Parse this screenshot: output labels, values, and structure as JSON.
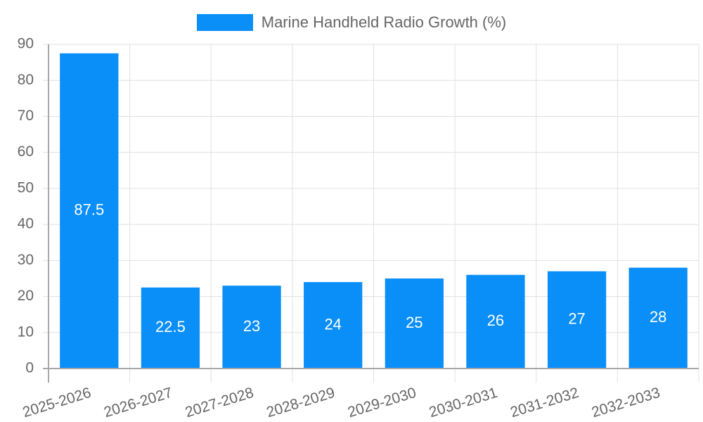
{
  "chart_data": {
    "type": "bar",
    "title": "",
    "legend": [
      {
        "label": "Marine Handheld Radio Growth (%)",
        "color": "#0a8ef8"
      }
    ],
    "legend_position": "top",
    "categories": [
      "2025-2026",
      "2026-2027",
      "2027-2028",
      "2028-2029",
      "2029-2030",
      "2030-2031",
      "2031-2032",
      "2032-2033"
    ],
    "series": [
      {
        "name": "Marine Handheld Radio Growth (%)",
        "values": [
          87.5,
          22.5,
          23,
          24,
          25,
          26,
          27,
          28
        ],
        "color": "#0a8ef8"
      }
    ],
    "data_labels": [
      "87.5",
      "22.5",
      "23",
      "24",
      "25",
      "26",
      "27",
      "28"
    ],
    "xlabel": "",
    "ylabel": "",
    "ylim": [
      0,
      90
    ],
    "yticks": [
      0,
      10,
      20,
      30,
      40,
      50,
      60,
      70,
      80,
      90
    ],
    "grid": true
  },
  "legend": {
    "label": "Marine Handheld Radio Growth (%)",
    "color": "#0a8ef8"
  },
  "colors": {
    "bar": "#0a8ef8",
    "grid": "#e0e0e0",
    "axis": "#a8a8a8",
    "tick_text": "#666666",
    "value_text": "#ffffff"
  }
}
